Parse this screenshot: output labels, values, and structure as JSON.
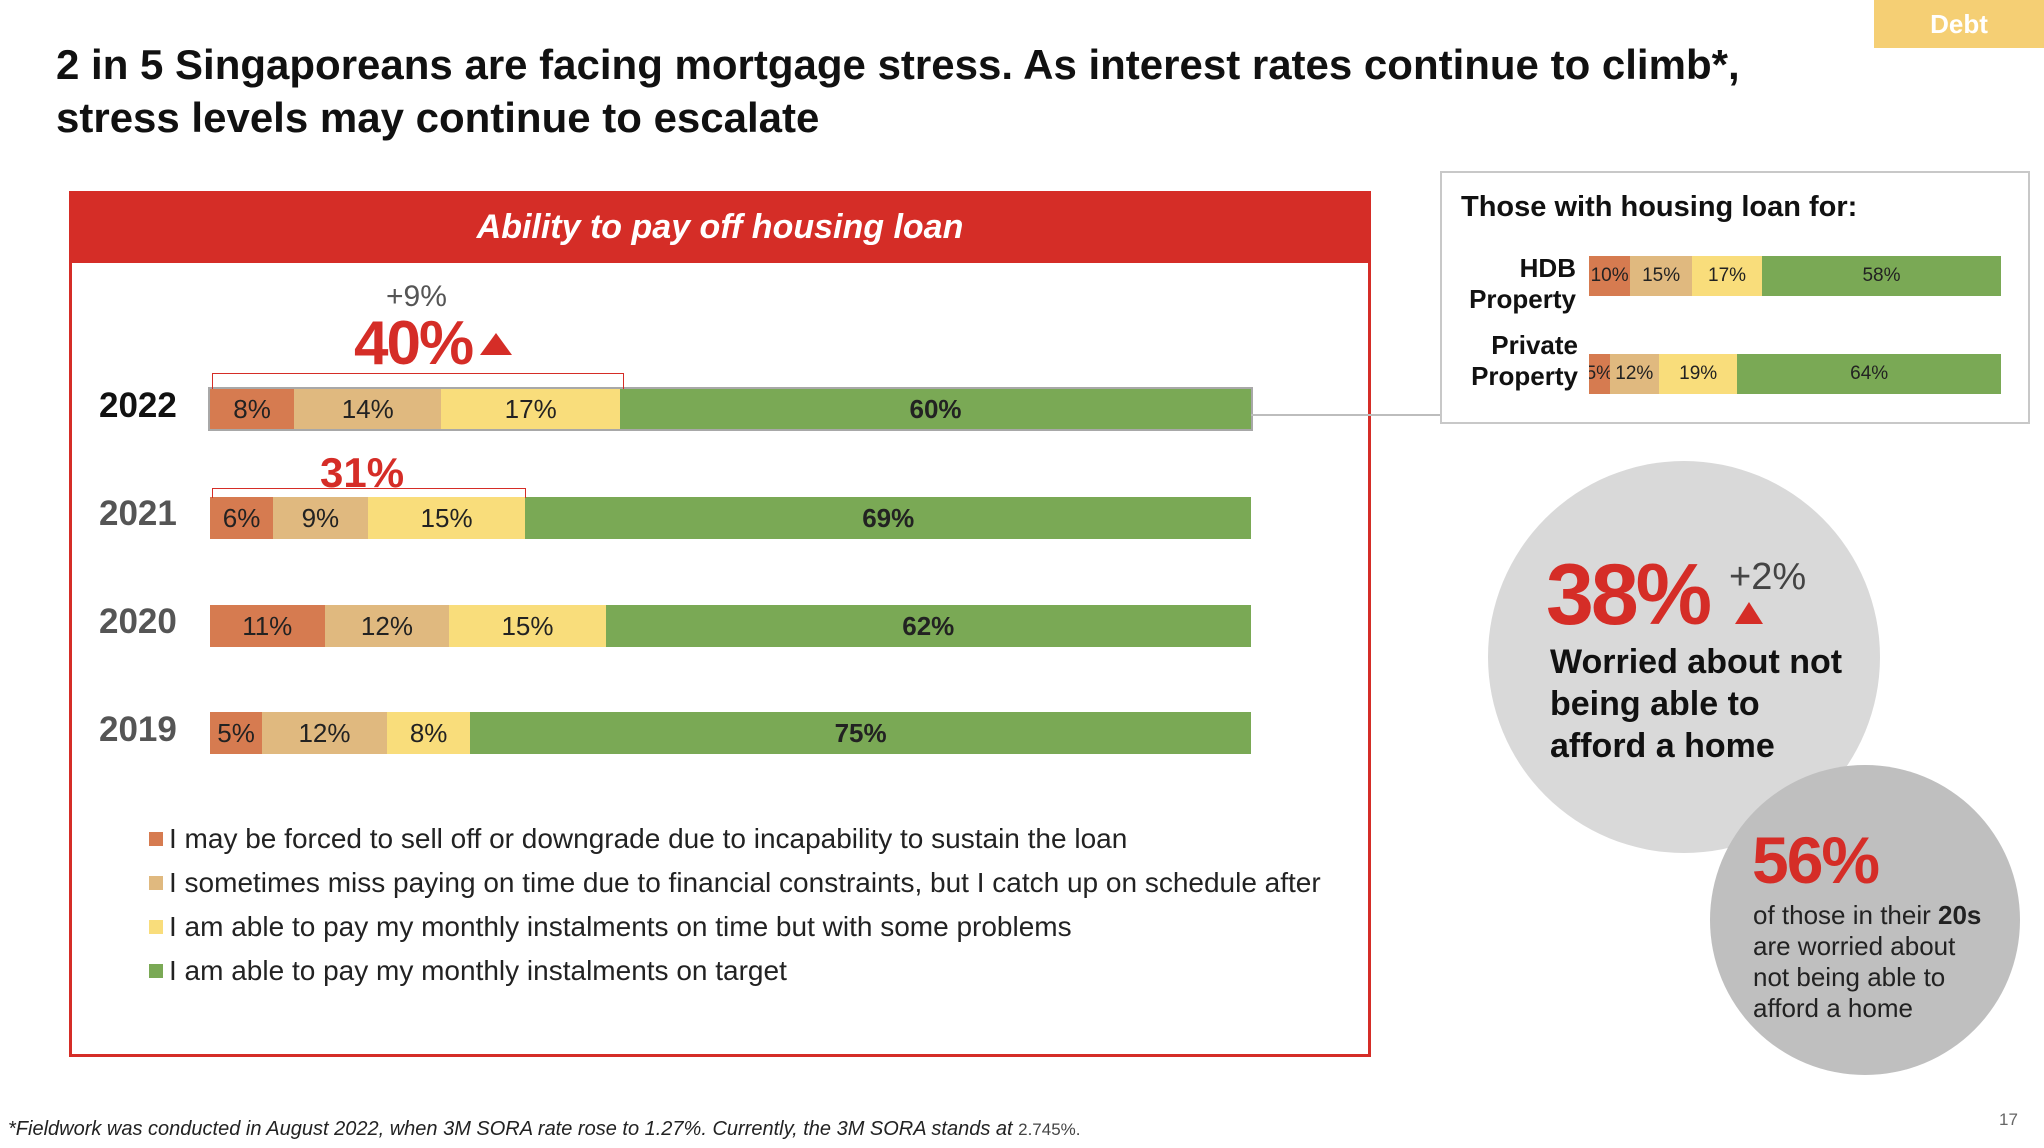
{
  "tag": "Debt",
  "title_line1": "2 in 5 Singaporeans are facing mortgage stress. As interest rates continue to climb*,",
  "title_line2": "stress levels may continue to escalate",
  "colors": {
    "brand_red": "#d52d27",
    "cat1": "#d67b50",
    "cat2": "#e0b97f",
    "cat3": "#f9dd7b",
    "cat4": "#7aa955",
    "tag": "#f5cf74"
  },
  "chart_data": [
    {
      "type": "bar",
      "orientation": "horizontal-stacked",
      "title": "Ability to pay off housing loan",
      "categories": [
        "2022",
        "2021",
        "2020",
        "2019"
      ],
      "series": [
        {
          "name": "I may be forced to sell off or downgrade due to incapability to sustain the loan",
          "values": [
            8,
            6,
            11,
            5
          ]
        },
        {
          "name": "I sometimes miss paying on time due to financial constraints, but I catch up on schedule after",
          "values": [
            14,
            9,
            12,
            12
          ]
        },
        {
          "name": "I am able to pay my monthly instalments on time but with some problems",
          "values": [
            17,
            15,
            15,
            8
          ]
        },
        {
          "name": "I am able to pay my monthly instalments on target",
          "values": [
            60,
            69,
            62,
            75
          ]
        }
      ],
      "data_labels": [
        [
          "8%",
          "14%",
          "17%",
          "60%"
        ],
        [
          "6%",
          "9%",
          "15%",
          "69%"
        ],
        [
          "11%",
          "12%",
          "15%",
          "62%"
        ],
        [
          "5%",
          "12%",
          "8%",
          "75%"
        ]
      ],
      "annotations": {
        "y2022_total": "40%",
        "y2022_change": "+9%",
        "y2021_total": "31%"
      }
    },
    {
      "type": "bar",
      "orientation": "horizontal-stacked",
      "title": "Those with housing loan for:",
      "categories": [
        "HDB Property",
        "Private Property"
      ],
      "category_lines": [
        [
          "HDB",
          "Property"
        ],
        [
          "Private",
          "Property"
        ]
      ],
      "series": [
        {
          "values": [
            10,
            5
          ]
        },
        {
          "values": [
            15,
            12
          ]
        },
        {
          "values": [
            17,
            19
          ]
        },
        {
          "values": [
            58,
            64
          ]
        }
      ],
      "data_labels": [
        [
          "10%",
          "15%",
          "17%",
          "58%"
        ],
        [
          "5%",
          "12%",
          "19%",
          "64%"
        ]
      ]
    }
  ],
  "stat1": {
    "value": "38%",
    "change": "+2%",
    "text_lines": [
      "Worried about not",
      "being able to",
      "afford a home"
    ]
  },
  "stat2": {
    "value": "56%",
    "line1_pre": "of those in their ",
    "line1_bold": "20s",
    "line2": "are worried about",
    "line3": "not being able to",
    "line4": "afford a home"
  },
  "footnote_main": "*Fieldwork was conducted in August 2022, when 3M SORA rate rose to 1.27%. Currently, the 3M SORA stands at ",
  "footnote_value": "2.745%.",
  "page_number": "17"
}
